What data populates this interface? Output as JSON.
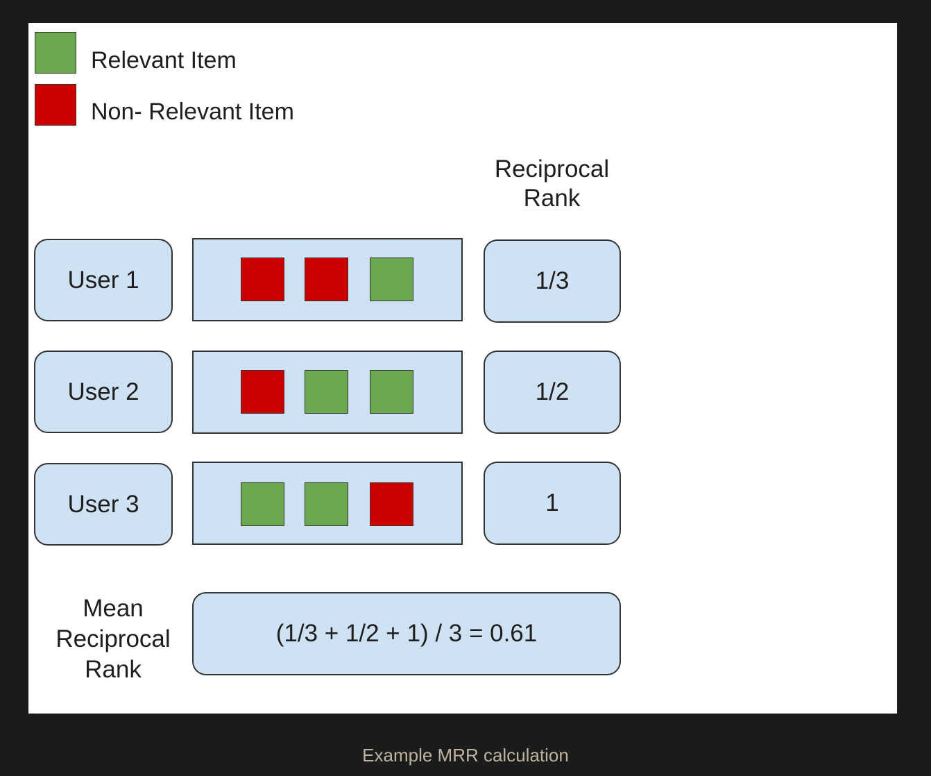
{
  "colors": {
    "relevant": "#6aa84f",
    "non_relevant": "#cc0000",
    "box_fill": "#cfe2f3"
  },
  "legend": {
    "relevant_label": "Relevant Item",
    "non_relevant_label": "Non- Relevant Item"
  },
  "rr_header_line1": "Reciprocal",
  "rr_header_line2": "Rank",
  "users": [
    {
      "label": "User 1",
      "items": [
        "non_relevant",
        "non_relevant",
        "relevant"
      ],
      "rr": "1/3"
    },
    {
      "label": "User 2",
      "items": [
        "non_relevant",
        "relevant",
        "relevant"
      ],
      "rr": "1/2"
    },
    {
      "label": "User 3",
      "items": [
        "relevant",
        "relevant",
        "non_relevant"
      ],
      "rr": "1"
    }
  ],
  "mrr": {
    "label_line1": "Mean",
    "label_line2": "Reciprocal",
    "label_line3": "Rank",
    "formula": "(1/3 + 1/2 + 1) / 3 = 0.61"
  },
  "caption": "Example MRR calculation"
}
